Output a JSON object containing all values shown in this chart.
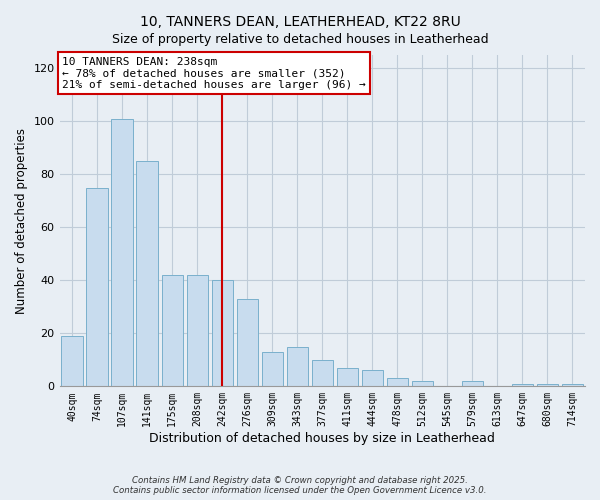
{
  "title": "10, TANNERS DEAN, LEATHERHEAD, KT22 8RU",
  "subtitle": "Size of property relative to detached houses in Leatherhead",
  "xlabel": "Distribution of detached houses by size in Leatherhead",
  "ylabel": "Number of detached properties",
  "bar_labels": [
    "40sqm",
    "74sqm",
    "107sqm",
    "141sqm",
    "175sqm",
    "208sqm",
    "242sqm",
    "276sqm",
    "309sqm",
    "343sqm",
    "377sqm",
    "411sqm",
    "444sqm",
    "478sqm",
    "512sqm",
    "545sqm",
    "579sqm",
    "613sqm",
    "647sqm",
    "680sqm",
    "714sqm"
  ],
  "bar_values": [
    19,
    75,
    101,
    85,
    42,
    42,
    40,
    33,
    13,
    15,
    10,
    7,
    6,
    3,
    2,
    0,
    2,
    0,
    1,
    1,
    1
  ],
  "bar_color": "#c8dcee",
  "bar_edge_color": "#7ab0cc",
  "vline_x_idx": 6,
  "vline_color": "#cc0000",
  "annotation_title": "10 TANNERS DEAN: 238sqm",
  "annotation_line1": "← 78% of detached houses are smaller (352)",
  "annotation_line2": "21% of semi-detached houses are larger (96) →",
  "ylim": [
    0,
    125
  ],
  "yticks": [
    0,
    20,
    40,
    60,
    80,
    100,
    120
  ],
  "footer1": "Contains HM Land Registry data © Crown copyright and database right 2025.",
  "footer2": "Contains public sector information licensed under the Open Government Licence v3.0.",
  "bg_color": "#e8eef4",
  "plot_bg_color": "#e8eef4",
  "grid_color": "#c0ccd8"
}
